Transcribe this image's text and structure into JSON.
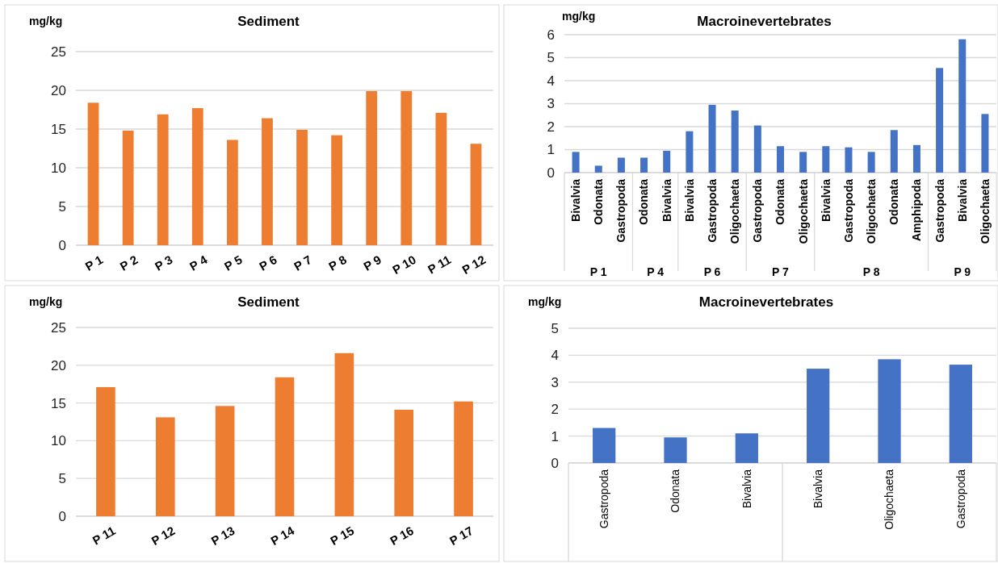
{
  "chart_data": [
    {
      "type": "bar",
      "title": "Sediment",
      "ylabel": "mg/kg",
      "categories": [
        "P 1",
        "P 2",
        "P 3",
        "P 4",
        "P 5",
        "P 6",
        "P 7",
        "P 8",
        "P 9",
        "P 10",
        "P 11",
        "P 12"
      ],
      "values": [
        18.4,
        14.8,
        16.9,
        17.7,
        13.6,
        16.4,
        14.9,
        14.2,
        19.9,
        19.9,
        17.1,
        13.1
      ],
      "color": "#ed7d31",
      "ylim": [
        0,
        25
      ],
      "yticks": [
        0,
        5,
        10,
        15,
        20,
        25
      ],
      "grid": "y"
    },
    {
      "type": "bar",
      "title": "Macroinevertebrates",
      "ylabel": "mg/kg",
      "categories": [
        "Bivalvia",
        "Odonata",
        "Gastropoda",
        "Odonata",
        "Bivalvia",
        "Bivalvia",
        "Gastropoda",
        "Oligochaeta",
        "Gastropoda",
        "Odonata",
        "Oligochaeta",
        "Bivalvia",
        "Gastropoda",
        "Oligochaeta",
        "Odonata",
        "Amphipoda",
        "Gastropoda",
        "Bivalvia",
        "Oligochaeta"
      ],
      "values": [
        0.9,
        0.3,
        0.65,
        0.65,
        0.95,
        1.8,
        2.95,
        2.7,
        2.05,
        1.15,
        0.9,
        1.15,
        1.1,
        0.9,
        1.85,
        1.2,
        4.55,
        5.8,
        2.55
      ],
      "color": "#4472c4",
      "ylim": [
        0,
        6
      ],
      "yticks": [
        0,
        1,
        2,
        3,
        4,
        5,
        6
      ],
      "grid": "y",
      "annotations": [
        "P 1",
        "P 4",
        "P 6",
        "P 7",
        "P 8",
        "P 9"
      ]
    },
    {
      "type": "bar",
      "title": "Sediment",
      "ylabel": "mg/kg",
      "categories": [
        "P 11",
        "P 12",
        "P 13",
        "P 14",
        "P 15",
        "P 16",
        "P 17"
      ],
      "values": [
        17.1,
        13.1,
        14.6,
        18.4,
        21.6,
        14.1,
        15.2
      ],
      "color": "#ed7d31",
      "ylim": [
        0,
        25
      ],
      "yticks": [
        0,
        5,
        10,
        15,
        20,
        25
      ],
      "grid": "y"
    },
    {
      "type": "bar",
      "title": "Macroinevertebrates",
      "ylabel": "mg/kg",
      "categories": [
        "Gastropoda",
        "Odonata",
        "Bivalvia",
        "Bivalvia",
        "Oligochaeta",
        "Gastropoda"
      ],
      "values": [
        1.3,
        0.95,
        1.1,
        3.5,
        3.85,
        3.65
      ],
      "color": "#4472c4",
      "ylim": [
        0,
        5
      ],
      "yticks": [
        0,
        1,
        2,
        3,
        4,
        5
      ],
      "grid": "y"
    }
  ]
}
